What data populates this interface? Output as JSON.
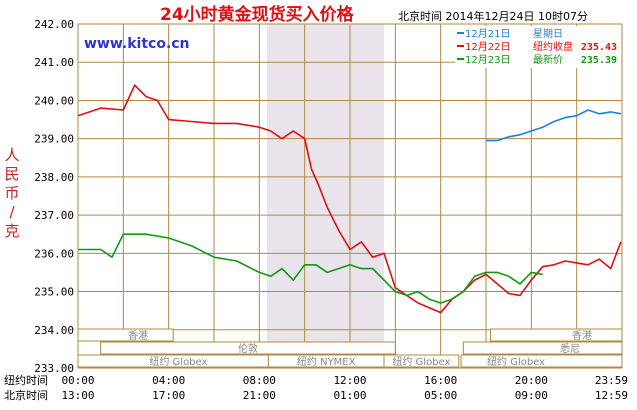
{
  "chart_data": {
    "type": "line",
    "title": "24小时黄金现货买入价格",
    "site": "www.kitco.cn",
    "time_caption": "北京时间  2014年12月24日 10时07分",
    "ylabel": "人民币/克",
    "ylim": [
      233.0,
      242.0
    ],
    "yticks": [
      "242.00",
      "241.00",
      "240.00",
      "239.00",
      "238.00",
      "237.00",
      "236.00",
      "235.00",
      "234.00",
      "233.00"
    ],
    "grid": true,
    "legend_position": "top-right",
    "xaxis_rows": [
      {
        "label": "纽约时间",
        "ticks": [
          "00:00",
          "04:00",
          "08:00",
          "12:00",
          "16:00",
          "20:00",
          "23:59"
        ]
      },
      {
        "label": "北京时间",
        "ticks": [
          "13:00",
          "17:00",
          "21:00",
          "01:00",
          "05:00",
          "09:00",
          "12:59"
        ]
      }
    ],
    "legend": [
      {
        "date": "12月21日",
        "status": "星期日",
        "value": "",
        "color": "#1e7fd8"
      },
      {
        "date": "12月22日",
        "status": "纽约收盘",
        "value": "235.43",
        "color": "#dd1111"
      },
      {
        "date": "12月23日",
        "status": "最新价",
        "value": "235.39",
        "color": "#119911"
      }
    ],
    "market_sessions": [
      {
        "name": "香港",
        "row": 1
      },
      {
        "name": "香港",
        "row": 1
      },
      {
        "name": "伦敦",
        "row": 2
      },
      {
        "name": "悉尼",
        "row": 2
      },
      {
        "name": "纽约 Globex",
        "row": 3
      },
      {
        "name": "纽约 NYMEX",
        "row": 3
      },
      {
        "name": "纽约 Globex",
        "row": 3
      },
      {
        "name": "纽约 Globex",
        "row": 3
      }
    ],
    "series": [
      {
        "name": "12月21日",
        "color": "#1e7fd8",
        "x": [
          18.0,
          18.5,
          19.0,
          19.5,
          20.0,
          20.5,
          21.0,
          21.5,
          22.0,
          22.5,
          23.0,
          23.5,
          23.95
        ],
        "values": [
          238.95,
          238.95,
          239.05,
          239.1,
          239.2,
          239.3,
          239.45,
          239.55,
          239.6,
          239.75,
          239.65,
          239.7,
          239.65
        ]
      },
      {
        "name": "12月22日",
        "color": "#dd1111",
        "x": [
          0.0,
          1.0,
          2.0,
          2.5,
          3.0,
          3.5,
          4.0,
          5.0,
          6.0,
          7.0,
          8.0,
          8.5,
          9.0,
          9.5,
          10.0,
          10.3,
          10.6,
          11.0,
          11.5,
          12.0,
          12.5,
          13.0,
          13.5,
          14.0,
          15.0,
          16.0,
          16.5,
          17.0,
          17.5,
          18.0,
          18.5,
          19.0,
          19.5,
          20.0,
          20.5,
          21.0,
          21.5,
          22.0,
          22.5,
          23.0,
          23.5,
          23.95
        ],
        "values": [
          239.6,
          239.8,
          239.75,
          240.4,
          240.1,
          240.0,
          239.5,
          239.45,
          239.4,
          239.4,
          239.3,
          239.2,
          239.0,
          239.2,
          239.0,
          238.2,
          237.8,
          237.2,
          236.6,
          236.1,
          236.3,
          235.9,
          236.0,
          235.1,
          234.7,
          234.45,
          234.8,
          235.0,
          235.3,
          235.45,
          235.2,
          234.95,
          234.9,
          235.3,
          235.65,
          235.7,
          235.8,
          235.75,
          235.7,
          235.85,
          235.6,
          236.3
        ]
      },
      {
        "name": "12月23日",
        "color": "#119911",
        "x": [
          0.0,
          1.0,
          1.5,
          2.0,
          3.0,
          4.0,
          5.0,
          6.0,
          7.0,
          8.0,
          8.5,
          9.0,
          9.5,
          10.0,
          10.5,
          11.0,
          12.0,
          12.5,
          13.0,
          13.5,
          14.0,
          14.5,
          15.0,
          15.5,
          16.0,
          16.5,
          17.0,
          17.5,
          18.0,
          18.5,
          19.0,
          19.5,
          20.0,
          20.5
        ],
        "values": [
          236.1,
          236.1,
          235.9,
          236.5,
          236.5,
          236.4,
          236.2,
          235.9,
          235.8,
          235.5,
          235.4,
          235.6,
          235.3,
          235.7,
          235.7,
          235.5,
          235.7,
          235.6,
          235.6,
          235.3,
          235.0,
          234.9,
          235.0,
          234.8,
          234.7,
          234.8,
          235.0,
          235.4,
          235.5,
          235.5,
          235.4,
          235.2,
          235.5,
          235.45
        ]
      }
    ]
  }
}
